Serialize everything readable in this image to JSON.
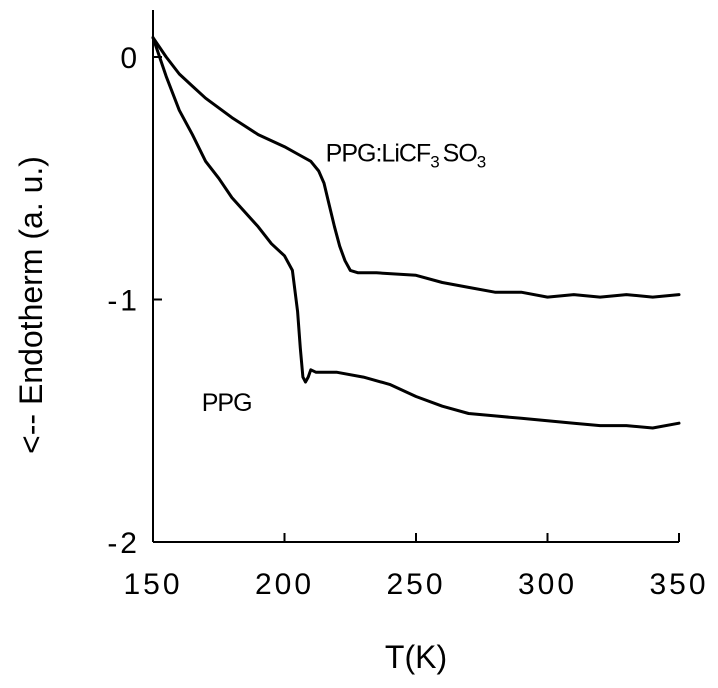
{
  "chart_data": {
    "type": "line",
    "xlabel": "T(K)",
    "ylabel": "<-- Endotherm (a. u.)",
    "xlim": [
      150,
      350
    ],
    "ylim": [
      -2,
      0.2
    ],
    "xticks": [
      "150",
      "200",
      "250",
      "300",
      "350"
    ],
    "yticks": [
      "0",
      "-1",
      "-2"
    ],
    "grid": false,
    "series": [
      {
        "name": "PPG:LiCF3SO3",
        "x": [
          150,
          155,
          160,
          165,
          170,
          180,
          190,
          200,
          205,
          210,
          213,
          215,
          217,
          219,
          221,
          223,
          225,
          228,
          235,
          250,
          260,
          270,
          280,
          290,
          300,
          310,
          320,
          330,
          340,
          350
        ],
        "y": [
          0.08,
          0.0,
          -0.07,
          -0.12,
          -0.17,
          -0.25,
          -0.32,
          -0.37,
          -0.4,
          -0.43,
          -0.47,
          -0.52,
          -0.61,
          -0.7,
          -0.78,
          -0.84,
          -0.88,
          -0.89,
          -0.89,
          -0.9,
          -0.93,
          -0.95,
          -0.97,
          -0.97,
          -0.99,
          -0.98,
          -0.99,
          -0.98,
          -0.99,
          -0.98
        ]
      },
      {
        "name": "PPG",
        "x": [
          150,
          155,
          160,
          165,
          170,
          175,
          180,
          190,
          195,
          200,
          203,
          205,
          206,
          207,
          208,
          209,
          210,
          212,
          220,
          230,
          240,
          250,
          260,
          270,
          280,
          290,
          300,
          310,
          320,
          330,
          340,
          350
        ],
        "y": [
          0.08,
          -0.08,
          -0.22,
          -0.32,
          -0.43,
          -0.5,
          -0.58,
          -0.7,
          -0.77,
          -0.82,
          -0.88,
          -1.05,
          -1.2,
          -1.32,
          -1.34,
          -1.32,
          -1.29,
          -1.3,
          -1.3,
          -1.32,
          -1.35,
          -1.4,
          -1.44,
          -1.47,
          -1.48,
          -1.49,
          -1.5,
          -1.51,
          -1.52,
          -1.52,
          -1.53,
          -1.51
        ]
      }
    ],
    "annotations": [
      {
        "text": "PPG:LiCF",
        "sub1": "3",
        "mid": "SO",
        "sub2": "3",
        "x": 246,
        "y": -0.43
      },
      {
        "text": "PPG",
        "x": 178,
        "y": -1.46
      }
    ]
  }
}
